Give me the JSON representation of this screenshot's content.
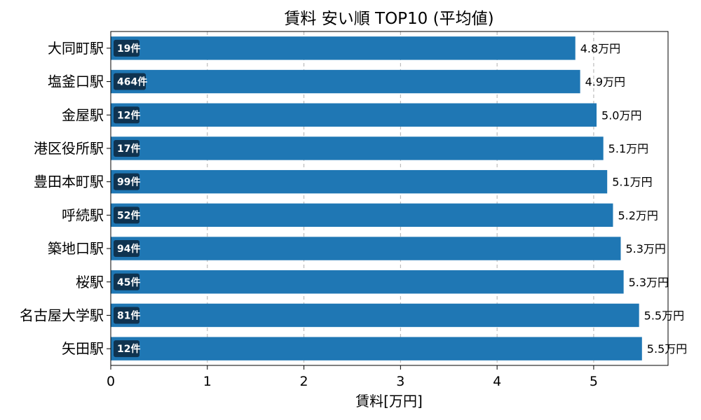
{
  "chart_data": {
    "type": "bar",
    "orientation": "horizontal",
    "title": "賃料 安い順 TOP10 (平均値)",
    "xlabel": "賃料[万円]",
    "ylabel": "",
    "xlim": [
      0,
      5.77
    ],
    "xticks": [
      "0",
      "1",
      "2",
      "3",
      "4",
      "5"
    ],
    "grid": "x-dashed",
    "bar_color": "#1f77b4",
    "badge_color": "#0f3350",
    "categories": [
      "大同町駅",
      "塩釜口駅",
      "金屋駅",
      "港区役所駅",
      "豊田本町駅",
      "呼続駅",
      "築地口駅",
      "桜駅",
      "名古屋大学駅",
      "矢田駅"
    ],
    "values": [
      4.81,
      4.86,
      5.03,
      5.1,
      5.14,
      5.2,
      5.28,
      5.31,
      5.47,
      5.5
    ],
    "value_labels": [
      "4.8万円",
      "4.9万円",
      "5.0万円",
      "5.1万円",
      "5.1万円",
      "5.2万円",
      "5.3万円",
      "5.3万円",
      "5.5万円",
      "5.5万円"
    ],
    "counts": [
      "19件",
      "464件",
      "12件",
      "17件",
      "99件",
      "52件",
      "94件",
      "45件",
      "81件",
      "12件"
    ]
  }
}
